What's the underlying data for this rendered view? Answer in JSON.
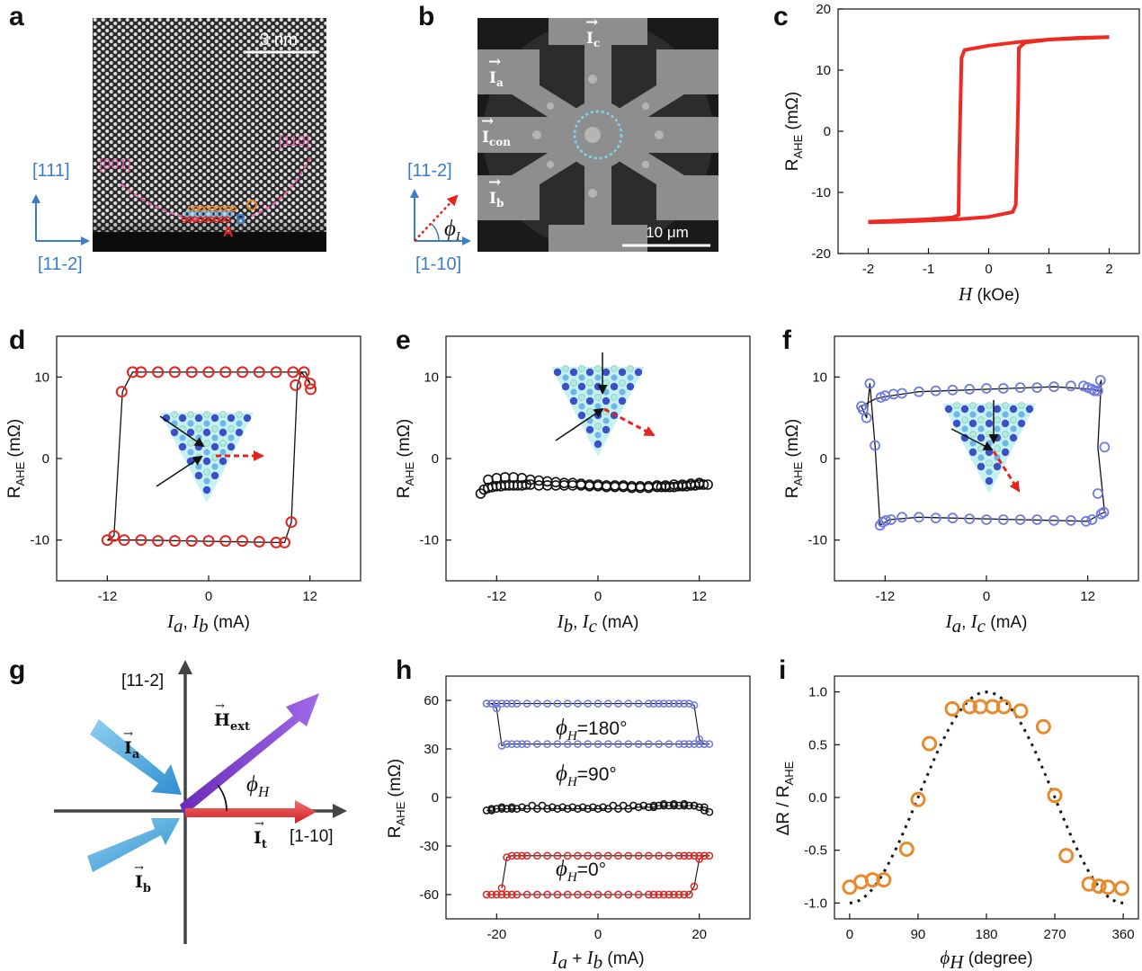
{
  "panels": {
    "a": {
      "label": "a",
      "scalebar": "3 nm",
      "dir_vertical": "[111]",
      "dir_horizontal": "[11-2]",
      "facet_left": "[001]",
      "facet_right": "[110]",
      "site_a": "A",
      "site_b": "B",
      "site_c": "C"
    },
    "b": {
      "label": "b",
      "scalebar": "10 μm",
      "dir_vertical": "[11-2]",
      "dir_horizontal": "[1-10]",
      "phi_label": "ϕ",
      "phi_sub": "I",
      "ic_label": "I",
      "ic_sub": "c",
      "ia_label": "I",
      "ia_sub": "a",
      "icon_label": "I",
      "icon_sub": "con",
      "ib_label": "I",
      "ib_sub": "b"
    },
    "c": {
      "label": "c",
      "ylabel": "R",
      "ylabel_sub": "AHE",
      "ylabel_unit": " (mΩ)",
      "xlabel_var": "H",
      "xlabel_unit": " (kOe)"
    },
    "d": {
      "label": "d",
      "ylabel": "R",
      "ylabel_sub": "AHE",
      "ylabel_unit": " (mΩ)",
      "x1": "I",
      "x1_sub": "a",
      "x2": "I",
      "x2_sub": "b",
      "xunit": " (mA)"
    },
    "e": {
      "label": "e",
      "ylabel": "R",
      "ylabel_sub": "AHE",
      "ylabel_unit": " (mΩ)",
      "x1": "I",
      "x1_sub": "b",
      "x2": "I",
      "x2_sub": "c",
      "xunit": "   (mA)"
    },
    "f": {
      "label": "f",
      "ylabel": "R",
      "ylabel_sub": "AHE",
      "ylabel_unit": " (mΩ)",
      "x1": "I",
      "x1_sub": "a",
      "x2": "I",
      "x2_sub": "c",
      "xunit": " (mA)"
    },
    "g": {
      "label": "g",
      "dir_vertical": "[11-2]",
      "dir_horizontal": "[1-10]",
      "ia_label": "I",
      "ia_sub": "a",
      "ib_label": "I",
      "ib_sub": "b",
      "hext_label": "H",
      "hext_sub": "ext",
      "it_label": "I",
      "it_sub": "t",
      "phi_label": "ϕ",
      "phi_sub": "H"
    },
    "h": {
      "label": "h",
      "ylabel": "R",
      "ylabel_sub": "AHE",
      "ylabel_unit": " (mΩ)",
      "xlabel": "I",
      "xlabel_sub1": "a",
      "xlabel_plus": " + ",
      "xlabel_b": "I",
      "xlabel_sub2": "b",
      "xunit": " (mA)",
      "ann_180": "=180°",
      "ann_90": "=90°",
      "ann_0": "=0°",
      "phi": "ϕ",
      "phi_sub": "H"
    },
    "i": {
      "label": "i",
      "ylabel": "ΔR / R",
      "ylabel_sub": "AHE",
      "xlabel": "ϕ",
      "xlabel_sub": "H",
      "xunit": " (degree)"
    }
  },
  "chart_data": [
    {
      "id": "c",
      "type": "line",
      "xlim": [
        -2.5,
        2.5
      ],
      "ylim": [
        -20,
        20
      ],
      "xticks": [
        -2,
        -1,
        0,
        1,
        2
      ],
      "yticks": [
        -20,
        -10,
        0,
        10,
        20
      ],
      "color": "#ee2a24",
      "series": [
        {
          "x": [
            -2.0,
            -1.5,
            -1.0,
            -0.6,
            -0.5,
            -0.49,
            -0.45,
            -0.4,
            0.0,
            0.5,
            1.0,
            1.5,
            2.0
          ],
          "y": [
            -14.8,
            -14.6,
            -14.4,
            -14.1,
            -13.7,
            -5.0,
            12.0,
            13.3,
            14.0,
            14.6,
            15.0,
            15.3,
            15.4
          ]
        },
        {
          "x": [
            2.0,
            1.5,
            1.0,
            0.6,
            0.5,
            0.49,
            0.45,
            0.4,
            0.0,
            -0.5,
            -1.0,
            -1.5,
            -2.0
          ],
          "y": [
            15.4,
            15.2,
            15.0,
            14.5,
            13.6,
            5.0,
            -12.0,
            -13.2,
            -14.0,
            -14.4,
            -14.6,
            -14.8,
            -14.9
          ]
        }
      ]
    },
    {
      "id": "d",
      "type": "scatter",
      "xlim": [
        -18,
        18
      ],
      "ylim": [
        -15,
        15
      ],
      "xticks": [
        -12,
        0,
        12
      ],
      "yticks": [
        -10,
        0,
        10
      ],
      "color": "#e3241f",
      "points": {
        "x": [
          -12.0,
          -10.0,
          -8.0,
          -6.0,
          -4.0,
          -2.0,
          0.0,
          2.0,
          4.0,
          6.0,
          8.0,
          9.0,
          9.8,
          10.3,
          12.0,
          12.1,
          11.3,
          10.0,
          8.0,
          6.0,
          4.0,
          2.0,
          0.0,
          -2.0,
          -4.0,
          -6.0,
          -8.0,
          -9.0,
          -10.3,
          -11.2
        ],
        "y": [
          -10.0,
          -10.0,
          -10.0,
          -10.1,
          -10.1,
          -10.1,
          -10.1,
          -10.1,
          -10.1,
          -10.2,
          -10.3,
          -10.3,
          -7.8,
          9.0,
          9.2,
          8.5,
          10.6,
          10.6,
          10.6,
          10.6,
          10.6,
          10.6,
          10.6,
          10.6,
          10.6,
          10.6,
          10.6,
          10.6,
          8.2,
          -9.5
        ]
      },
      "line": {
        "x": [
          -12.0,
          -10.0,
          -9.0,
          -8.0,
          8.0,
          9.0,
          9.8,
          10.5,
          11.0,
          12.0,
          11.5,
          10.0,
          8.0,
          -8.0,
          -9.0,
          -10.2,
          -11.2,
          -12.0
        ],
        "y": [
          -10.0,
          -10.0,
          -10.0,
          -10.0,
          -10.3,
          -10.3,
          -7.8,
          9.0,
          10.6,
          9.2,
          10.6,
          10.6,
          10.6,
          10.6,
          10.6,
          8.2,
          -9.5,
          -10.0
        ]
      }
    },
    {
      "id": "e",
      "type": "scatter",
      "xlim": [
        -18,
        18
      ],
      "ylim": [
        -15,
        15
      ],
      "xticks": [
        -12,
        0,
        12
      ],
      "yticks": [
        -10,
        0,
        10
      ],
      "color": "#111111",
      "points": {
        "x": [
          -13.9,
          -13.5,
          -13.0,
          -12.5,
          -12.0,
          -11.5,
          -11.0,
          -10.5,
          -10.0,
          -9.5,
          -9.0,
          -8.5,
          -8.0,
          -7.0,
          -6.0,
          -5.0,
          -4.0,
          -3.0,
          -2.0,
          -1.0,
          0.0,
          1.0,
          2.0,
          3.0,
          4.0,
          5.0,
          6.0,
          7.0,
          7.5,
          8.0,
          8.5,
          9.0,
          9.5,
          10.0,
          10.5,
          11.0,
          11.5,
          12.0,
          12.5,
          13.0,
          -13.0,
          -12.0,
          -11.0,
          -10.0,
          -9.0,
          -8.0,
          -7.0,
          -6.0,
          -5.0,
          -4.0,
          -3.0,
          -2.0,
          -1.0,
          0.0,
          1.0,
          2.0,
          3.0,
          4.0,
          5.0,
          6.0,
          7.0,
          8.0,
          9.0,
          10.0,
          11.0,
          12.0
        ],
        "y": [
          -4.3,
          -3.8,
          -3.6,
          -3.5,
          -3.4,
          -3.4,
          -3.3,
          -3.3,
          -3.3,
          -3.3,
          -3.3,
          -3.2,
          -3.2,
          -3.3,
          -3.3,
          -3.3,
          -3.3,
          -3.3,
          -3.3,
          -3.4,
          -3.4,
          -3.5,
          -3.5,
          -3.5,
          -3.6,
          -3.6,
          -3.6,
          -3.5,
          -3.5,
          -3.5,
          -3.5,
          -3.5,
          -3.4,
          -3.4,
          -3.4,
          -3.3,
          -3.3,
          -3.2,
          -3.2,
          -3.2,
          -2.6,
          -2.4,
          -2.3,
          -2.3,
          -2.4,
          -2.6,
          -2.7,
          -2.8,
          -2.9,
          -3.0,
          -3.0,
          -3.1,
          -3.2,
          -3.2,
          -3.3,
          -3.3,
          -3.3,
          -3.4,
          -3.4,
          -3.4,
          -3.3,
          -3.3,
          -3.2,
          -3.2,
          -3.1,
          -3.0
        ]
      }
    },
    {
      "id": "f",
      "type": "scatter",
      "xlim": [
        -18,
        18
      ],
      "ylim": [
        -15,
        15
      ],
      "xticks": [
        -12,
        0,
        12
      ],
      "yticks": [
        -10,
        0,
        10
      ],
      "color": "#6e7be0",
      "points": {
        "x": [
          -14.8,
          -14.6,
          -14.2,
          -13.8,
          -13.2,
          -12.6,
          -12.3,
          -11.9,
          -11.3,
          -10.0,
          -8.0,
          -6.0,
          -4.0,
          -2.0,
          0.0,
          2.0,
          4.0,
          6.0,
          8.0,
          10.0,
          11.8,
          12.5,
          13.2,
          13.6,
          13.9,
          14.0,
          13.5,
          13.2,
          12.8,
          12.5,
          12.0,
          11.5,
          10.0,
          8.0,
          6.0,
          4.0,
          2.0,
          0.0,
          -2.0,
          -4.0,
          -6.0,
          -8.0,
          -10.0,
          -11.0,
          -12.0,
          -12.5
        ],
        "y": [
          6.4,
          6.0,
          5.0,
          9.2,
          1.6,
          -8.2,
          -7.8,
          -7.6,
          -7.5,
          -7.2,
          -7.2,
          -7.3,
          -7.3,
          -7.4,
          -7.5,
          -7.5,
          -7.5,
          -7.5,
          -7.6,
          -7.6,
          -7.7,
          -7.5,
          -4.3,
          -6.8,
          -6.6,
          1.4,
          9.6,
          8.3,
          8.3,
          8.5,
          8.7,
          8.9,
          8.9,
          8.8,
          8.7,
          8.7,
          8.6,
          8.6,
          8.5,
          8.4,
          8.3,
          8.2,
          8.0,
          7.9,
          7.7,
          7.5
        ]
      },
      "line": {
        "x": [
          -14.8,
          -14.2,
          -13.8,
          -13.2,
          -12.6,
          -11.5,
          -8.0,
          8.0,
          12.0,
          13.5,
          14.0,
          13.2,
          13.6,
          13.2,
          12.5,
          8.0,
          -8.0,
          -12.0,
          -13.2,
          -14.8
        ],
        "y": [
          6.4,
          5.0,
          9.2,
          1.6,
          -8.2,
          -7.5,
          -7.2,
          -7.6,
          -7.7,
          -6.8,
          -6.6,
          1.4,
          9.6,
          8.3,
          8.5,
          8.8,
          8.2,
          7.6,
          7.3,
          6.4
        ]
      }
    },
    {
      "id": "h",
      "type": "scatter",
      "xlim": [
        -30,
        30
      ],
      "ylim": [
        -75,
        75
      ],
      "xticks": [
        -20,
        0,
        20
      ],
      "yticks": [
        -60,
        -30,
        0,
        30,
        60
      ],
      "series": [
        {
          "name": "180",
          "color": "#6e7be0",
          "x": [
            -22,
            -21,
            -20,
            -19,
            -18,
            -17,
            -16,
            -14,
            -12,
            -10,
            -8,
            -6,
            -4,
            -2,
            0,
            2,
            4,
            6,
            8,
            10,
            11,
            12,
            13,
            14,
            15,
            16,
            17,
            18,
            19,
            20,
            21,
            22,
            21,
            20,
            19,
            18,
            17,
            16,
            14,
            12,
            10,
            8,
            6,
            4,
            2,
            0,
            -2,
            -4,
            -6,
            -8,
            -10,
            -12,
            -14,
            -15,
            -16,
            -17,
            -18,
            -19,
            -20,
            -21,
            -22
          ],
          "y": [
            58,
            58,
            58,
            58,
            58,
            58,
            58,
            58,
            58,
            58,
            58,
            58,
            58,
            58,
            58,
            58,
            58,
            58,
            58,
            58,
            58,
            58,
            58,
            58,
            58,
            58,
            58,
            58,
            57,
            36,
            33,
            33,
            33,
            33,
            33,
            33,
            33,
            33,
            33,
            33,
            33,
            33,
            33,
            33,
            33,
            33,
            33,
            33,
            33,
            33,
            33,
            33,
            33,
            33,
            33,
            33,
            33,
            32,
            55,
            58,
            58
          ]
        },
        {
          "name": "90",
          "color": "#111111",
          "x": [
            -22,
            -21,
            -20,
            -19,
            -18,
            -17,
            -16,
            -14,
            -12,
            -10,
            -8,
            -6,
            -4,
            -2,
            0,
            2,
            4,
            6,
            8,
            10,
            11,
            12,
            13,
            14,
            15,
            16,
            17,
            18,
            19,
            20,
            21,
            22,
            -21,
            -19,
            -17,
            -15,
            -13,
            -11,
            -9,
            -7,
            -5,
            -3,
            -1,
            1,
            3,
            5,
            7,
            9,
            11,
            13,
            15,
            17,
            19,
            21
          ],
          "y": [
            -8,
            -8,
            -7,
            -7,
            -7,
            -7,
            -7,
            -7,
            -7,
            -7,
            -7,
            -7,
            -7,
            -7,
            -7,
            -7,
            -7,
            -7,
            -6,
            -6,
            -6,
            -5,
            -5,
            -5,
            -5,
            -5,
            -5,
            -5,
            -5,
            -6,
            -8,
            -9,
            -7,
            -6,
            -6,
            -6,
            -5,
            -5,
            -6,
            -6,
            -6,
            -6,
            -6,
            -6,
            -5,
            -5,
            -5,
            -5,
            -5,
            -4,
            -4,
            -4,
            -5,
            -6
          ]
        },
        {
          "name": "0",
          "color": "#e3241f",
          "x": [
            -22,
            -21,
            -20,
            -19,
            -18,
            -17,
            -16,
            -14,
            -12,
            -10,
            -8,
            -6,
            -4,
            -2,
            0,
            2,
            4,
            6,
            8,
            10,
            11,
            12,
            13,
            14,
            15,
            16,
            17,
            18,
            19,
            20,
            21,
            22,
            21,
            20,
            19,
            18,
            17,
            16,
            14,
            12,
            10,
            8,
            6,
            4,
            2,
            0,
            -2,
            -4,
            -6,
            -8,
            -10,
            -12,
            -14,
            -15,
            -16,
            -17,
            -18,
            -19
          ],
          "y": [
            -60,
            -60,
            -60,
            -60,
            -60,
            -60,
            -60,
            -60,
            -60,
            -60,
            -60,
            -60,
            -60,
            -60,
            -60,
            -60,
            -60,
            -60,
            -60,
            -60,
            -60,
            -60,
            -60,
            -60,
            -60,
            -60,
            -60,
            -60,
            -55,
            -38,
            -36,
            -36,
            -36,
            -36,
            -36,
            -36,
            -36,
            -36,
            -36,
            -36,
            -36,
            -36,
            -36,
            -36,
            -36,
            -36,
            -36,
            -36,
            -36,
            -36,
            -36,
            -36,
            -36,
            -36,
            -36,
            -36,
            -37,
            -56
          ]
        }
      ]
    },
    {
      "id": "i",
      "type": "scatter",
      "xlim": [
        -20,
        380
      ],
      "ylim": [
        -1.15,
        1.15
      ],
      "xticks": [
        0,
        90,
        180,
        270,
        360
      ],
      "yticks": [
        -1.0,
        -0.5,
        0.0,
        0.5,
        1.0
      ],
      "color": "#e8892b",
      "points": {
        "x": [
          0,
          15,
          30,
          45,
          75,
          90,
          105,
          135,
          158,
          172,
          188,
          203,
          225,
          255,
          270,
          285,
          315,
          328,
          340,
          358
        ],
        "y": [
          -0.85,
          -0.8,
          -0.78,
          -0.78,
          -0.49,
          -0.02,
          0.51,
          0.84,
          0.86,
          0.86,
          0.86,
          0.86,
          0.82,
          0.67,
          0.02,
          -0.55,
          -0.82,
          -0.84,
          -0.85,
          -0.86
        ]
      },
      "fit": "cosine-dotted"
    }
  ]
}
